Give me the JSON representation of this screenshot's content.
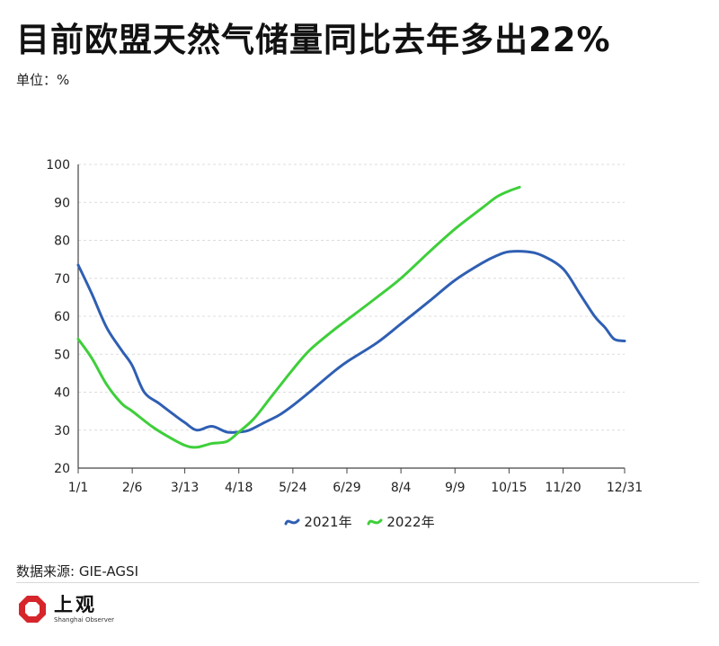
{
  "title": "目前欧盟天然气储量同比去年多出22%",
  "unit_label": "单位：%",
  "source": "数据来源: GIE-AGSI",
  "logo": {
    "text_cn": "上观",
    "text_en": "Shanghai Observer",
    "color": "#d6262b"
  },
  "chart_data": {
    "type": "line",
    "title": "目前欧盟天然气储量同比去年多出22%",
    "ylabel": "单位：%",
    "ylim": [
      20,
      100
    ],
    "xlim": [
      1,
      365
    ],
    "y_ticks": [
      "20",
      "30",
      "40",
      "50",
      "60",
      "70",
      "80",
      "90",
      "100"
    ],
    "x_ticks": [
      {
        "label": "1/1",
        "day": 1
      },
      {
        "label": "2/6",
        "day": 37
      },
      {
        "label": "3/13",
        "day": 72
      },
      {
        "label": "4/18",
        "day": 108
      },
      {
        "label": "5/24",
        "day": 144
      },
      {
        "label": "6/29",
        "day": 180
      },
      {
        "label": "8/4",
        "day": 216
      },
      {
        "label": "9/9",
        "day": 252
      },
      {
        "label": "10/15",
        "day": 288
      },
      {
        "label": "11/20",
        "day": 324
      },
      {
        "label": "12/31",
        "day": 365
      }
    ],
    "grid": "horizontal dashed",
    "legend_position": "bottom-center",
    "series": [
      {
        "name": "2021年",
        "color": "#2f5fb3",
        "points": [
          [
            1,
            73.5
          ],
          [
            10,
            66
          ],
          [
            20,
            57
          ],
          [
            30,
            51
          ],
          [
            37,
            47
          ],
          [
            45,
            40
          ],
          [
            55,
            37
          ],
          [
            65,
            34
          ],
          [
            72,
            32
          ],
          [
            80,
            30
          ],
          [
            90,
            31
          ],
          [
            100,
            29.5
          ],
          [
            108,
            29.5
          ],
          [
            115,
            30
          ],
          [
            125,
            32
          ],
          [
            135,
            34
          ],
          [
            144,
            36.5
          ],
          [
            155,
            40
          ],
          [
            170,
            45
          ],
          [
            180,
            48
          ],
          [
            200,
            53
          ],
          [
            216,
            58
          ],
          [
            235,
            64
          ],
          [
            252,
            69.5
          ],
          [
            270,
            74
          ],
          [
            280,
            76
          ],
          [
            288,
            77
          ],
          [
            300,
            77
          ],
          [
            310,
            76
          ],
          [
            324,
            72.5
          ],
          [
            335,
            66
          ],
          [
            345,
            60
          ],
          [
            352,
            57
          ],
          [
            358,
            54
          ],
          [
            365,
            53.5
          ]
        ]
      },
      {
        "name": "2022年",
        "color": "#3ecf3a",
        "points": [
          [
            1,
            54
          ],
          [
            10,
            49
          ],
          [
            20,
            42
          ],
          [
            30,
            37
          ],
          [
            37,
            35
          ],
          [
            50,
            31
          ],
          [
            60,
            28.5
          ],
          [
            72,
            26
          ],
          [
            80,
            25.5
          ],
          [
            90,
            26.5
          ],
          [
            100,
            27
          ],
          [
            108,
            29.5
          ],
          [
            118,
            33
          ],
          [
            130,
            39
          ],
          [
            144,
            46
          ],
          [
            155,
            51
          ],
          [
            170,
            56
          ],
          [
            180,
            59
          ],
          [
            200,
            65
          ],
          [
            216,
            70
          ],
          [
            235,
            77
          ],
          [
            252,
            83
          ],
          [
            270,
            88.5
          ],
          [
            280,
            91.5
          ],
          [
            288,
            93
          ],
          [
            295,
            94
          ]
        ]
      }
    ]
  }
}
